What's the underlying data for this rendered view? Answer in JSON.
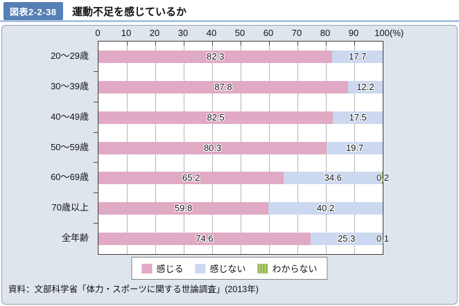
{
  "header": {
    "figure_label": "図表2-2-38",
    "title": "運動不足を感じているか"
  },
  "source": "資料：文部科学省「体力・スポーツに関する世論調査」(2013年)",
  "legend": {
    "items": [
      {
        "label": "感じる",
        "color": "#e0a9c4"
      },
      {
        "label": "感じない",
        "color": "#ccd8ef"
      },
      {
        "label": "わからない",
        "color_stripe_dark": "#8aa94b",
        "color_stripe_light": "#c3d682"
      }
    ]
  },
  "colors": {
    "figure_label_bg": "#567fb4",
    "header_rule": "#a9c3e1",
    "panel_bg": "#dee5ed",
    "plot_border": "#3c3c3c",
    "gridline": "#b4b4b4",
    "feel": "#e0a9c4",
    "not_feel": "#ccd8ef",
    "unknown_dark": "#8aa94b",
    "unknown_light": "#c3d682"
  },
  "chart_data": {
    "type": "bar",
    "orientation": "horizontal",
    "stacked": true,
    "title": "運動不足を感じているか",
    "categories": [
      "20〜29歳",
      "30〜39歳",
      "40〜49歳",
      "50〜59歳",
      "60〜69歳",
      "70歳以上",
      "全年齢"
    ],
    "series": [
      {
        "name": "感じる",
        "values": [
          82.3,
          87.8,
          82.5,
          80.3,
          65.2,
          59.8,
          74.6
        ]
      },
      {
        "name": "感じない",
        "values": [
          17.7,
          12.2,
          17.5,
          19.7,
          34.6,
          40.2,
          25.3
        ]
      },
      {
        "name": "わからない",
        "values": [
          0,
          0,
          0,
          0,
          0.2,
          0,
          0.1
        ]
      }
    ],
    "x_axis": {
      "min": 0,
      "max": 100,
      "tick_step": 10,
      "ticks": [
        0,
        10,
        20,
        30,
        40,
        50,
        60,
        70,
        80,
        90,
        100
      ],
      "unit": "(%)"
    },
    "grid": true,
    "legend_position": "bottom"
  }
}
